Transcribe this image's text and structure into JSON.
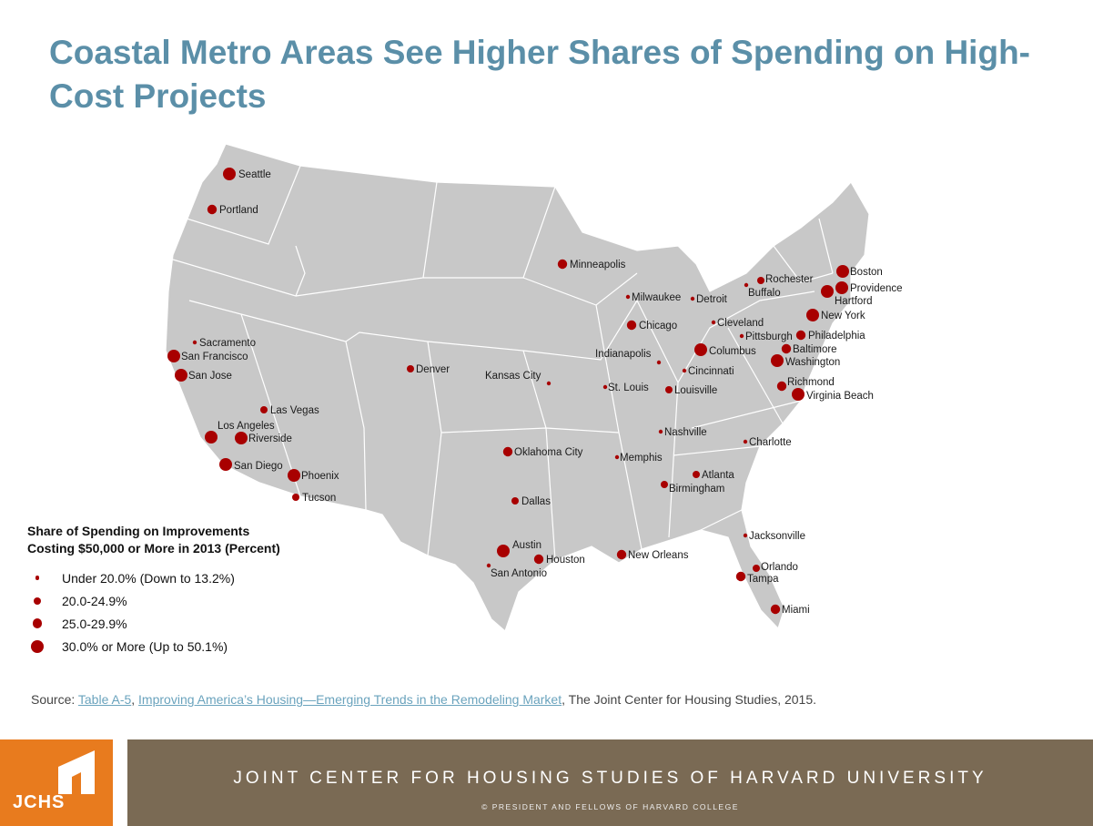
{
  "title": "Coastal Metro Areas See Higher Shares of Spending on High-Cost Projects",
  "legend": {
    "title_line1": "Share of Spending on Improvements",
    "title_line2": "Costing $50,000 or More in 2013 (Percent)",
    "items": [
      {
        "label": "Under  20.0% (Down to 13.2%)",
        "class": 1
      },
      {
        "label": "20.0-24.9%",
        "class": 2
      },
      {
        "label": "25.0-29.9%",
        "class": 3
      },
      {
        "label": "30.0% or More (Up to 50.1%)",
        "class": 4
      }
    ]
  },
  "colors": {
    "dot": "#a80000",
    "land": "#c8c8c8",
    "border": "#ffffff",
    "title": "#5b8fa8",
    "logo": "#e87b1e",
    "band": "#7a6a54"
  },
  "cities": [
    {
      "name": "Seattle",
      "class": 4
    },
    {
      "name": "Portland",
      "class": 3
    },
    {
      "name": "Sacramento",
      "class": 1
    },
    {
      "name": "San Francisco",
      "class": 4
    },
    {
      "name": "San Jose",
      "class": 4
    },
    {
      "name": "Las Vegas",
      "class": 2
    },
    {
      "name": "Los Angeles",
      "class": 4
    },
    {
      "name": "Riverside",
      "class": 4
    },
    {
      "name": "San Diego",
      "class": 4
    },
    {
      "name": "Phoenix",
      "class": 4
    },
    {
      "name": "Tucson",
      "class": 2
    },
    {
      "name": "Denver",
      "class": 2
    },
    {
      "name": "Minneapolis",
      "class": 3
    },
    {
      "name": "Milwaukee",
      "class": 1
    },
    {
      "name": "Detroit",
      "class": 1
    },
    {
      "name": "Chicago",
      "class": 3
    },
    {
      "name": "Kansas City",
      "class": 1
    },
    {
      "name": "Indianapolis",
      "class": 1
    },
    {
      "name": "Columbus",
      "class": 4
    },
    {
      "name": "Cleveland",
      "class": 1
    },
    {
      "name": "Pittsburgh",
      "class": 1
    },
    {
      "name": "Cincinnati",
      "class": 1
    },
    {
      "name": "St. Louis",
      "class": 1
    },
    {
      "name": "Louisville",
      "class": 2
    },
    {
      "name": "Nashville",
      "class": 1
    },
    {
      "name": "Oklahoma City",
      "class": 3
    },
    {
      "name": "Memphis",
      "class": 1
    },
    {
      "name": "Dallas",
      "class": 2
    },
    {
      "name": "Atlanta",
      "class": 2
    },
    {
      "name": "Birmingham",
      "class": 2
    },
    {
      "name": "Charlotte",
      "class": 1
    },
    {
      "name": "Austin",
      "class": 4
    },
    {
      "name": "Houston",
      "class": 3
    },
    {
      "name": "San Antonio",
      "class": 1
    },
    {
      "name": "New Orleans",
      "class": 3
    },
    {
      "name": "Jacksonville",
      "class": 1
    },
    {
      "name": "Orlando",
      "class": 2
    },
    {
      "name": "Tampa",
      "class": 3
    },
    {
      "name": "Miami",
      "class": 3
    },
    {
      "name": "Rochester",
      "class": 2
    },
    {
      "name": "Buffalo",
      "class": 1
    },
    {
      "name": "Boston",
      "class": 4
    },
    {
      "name": "Providence",
      "class": 4
    },
    {
      "name": "Hartford",
      "class": 4
    },
    {
      "name": "New York",
      "class": 4
    },
    {
      "name": "Philadelphia",
      "class": 3
    },
    {
      "name": "Baltimore",
      "class": 3
    },
    {
      "name": "Washington",
      "class": 4
    },
    {
      "name": "Richmond",
      "class": 3
    },
    {
      "name": "Virginia Beach",
      "class": 4
    }
  ],
  "source": {
    "prefix": "Source: ",
    "link1": "Table  A-5",
    "sep": ", ",
    "link2": "Improving  America’s Housing—Emerging  Trends  in the Remodeling  Market",
    "suffix": ", The  Joint Center for Housing Studies, 2015."
  },
  "footer": {
    "logo_text": "JCHS",
    "main": "JOINT CENTER FOR HOUSING STUDIES OF HARVARD UNIVERSITY",
    "sub": "© PRESIDENT AND FELLOWS OF HARVARD COLLEGE"
  }
}
